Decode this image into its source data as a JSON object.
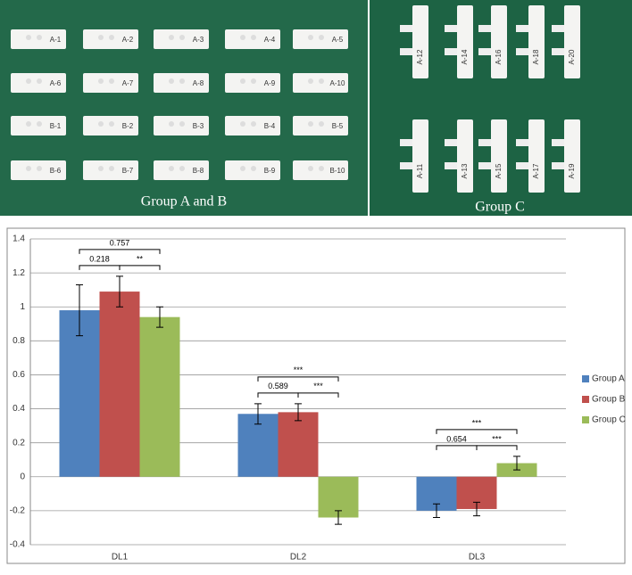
{
  "photos": [
    {
      "caption": "Group A and B",
      "labels": [
        "A-1",
        "A-2",
        "A-3",
        "A-4",
        "A-5",
        "A-6",
        "A-7",
        "A-8",
        "A-9",
        "A-10",
        "B-1",
        "B-2",
        "B-3",
        "B-4",
        "B-5",
        "B-6",
        "B-7",
        "B-8",
        "B-9",
        "B-10"
      ]
    },
    {
      "caption": "Group C",
      "labels": [
        "A-12",
        "A-14",
        "A-16",
        "A-18",
        "A-20",
        "A-11",
        "A-13",
        "A-15",
        "A-17",
        "A-19"
      ]
    }
  ],
  "chart_data": {
    "type": "bar",
    "categories": [
      "DL1",
      "DL2",
      "DL3"
    ],
    "series": [
      {
        "name": "Group A",
        "color": "#4f81bd",
        "values": [
          0.98,
          0.37,
          -0.2
        ],
        "errors": [
          0.15,
          0.06,
          0.04
        ]
      },
      {
        "name": "Group B",
        "color": "#c0504d",
        "values": [
          1.09,
          0.38,
          -0.19
        ],
        "errors": [
          0.09,
          0.05,
          0.04
        ]
      },
      {
        "name": "Group C",
        "color": "#9bbb59",
        "values": [
          0.94,
          -0.24,
          0.08
        ],
        "errors": [
          0.06,
          0.04,
          0.04
        ]
      }
    ],
    "annotations": [
      [
        {
          "label": "0.218",
          "pair": [
            0,
            1
          ]
        },
        {
          "label": "**",
          "pair": [
            1,
            2
          ]
        },
        {
          "label": "0.757",
          "pair": [
            0,
            2
          ]
        }
      ],
      [
        {
          "label": "0.589",
          "pair": [
            0,
            1
          ]
        },
        {
          "label": "***",
          "pair": [
            1,
            2
          ]
        },
        {
          "label": "***",
          "pair": [
            0,
            2
          ]
        }
      ],
      [
        {
          "label": "0.654",
          "pair": [
            0,
            1
          ]
        },
        {
          "label": "***",
          "pair": [
            1,
            2
          ]
        },
        {
          "label": "***",
          "pair": [
            0,
            2
          ]
        }
      ]
    ],
    "ylim": [
      -0.4,
      1.4
    ],
    "yticks": [
      -0.4,
      -0.2,
      0,
      0.2,
      0.4,
      0.6,
      0.8,
      1,
      1.2,
      1.4
    ],
    "grid": true,
    "legend": "right"
  }
}
